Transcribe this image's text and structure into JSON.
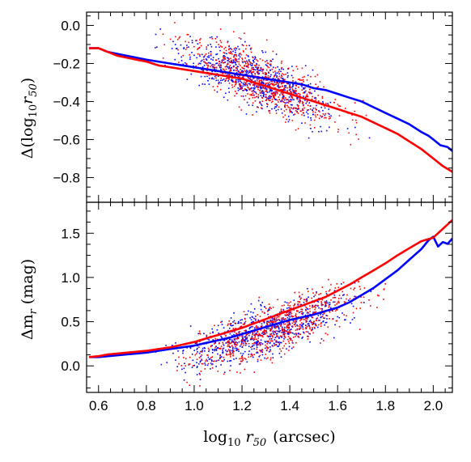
{
  "chart_data": [
    {
      "type": "scatter",
      "panel": "top",
      "ylabel": "Δ(log10r50)",
      "ylabel_parts": {
        "prefix": "Δ(log",
        "sub": "10",
        "var": "r",
        "var_sub": "50",
        "suffix": ")"
      },
      "xlim": [
        0.55,
        2.08
      ],
      "ylim": [
        -0.93,
        0.07
      ],
      "xticks": [
        0.6,
        0.8,
        1.0,
        1.2,
        1.4,
        1.6,
        1.8,
        2.0
      ],
      "yticks": [
        -0.8,
        -0.6,
        -0.4,
        -0.2,
        0.0
      ],
      "ytick_labels": [
        "−0.8",
        "−0.6",
        "−0.4",
        "−0.2",
        "0.0"
      ],
      "show_x_labels": false,
      "grid": false,
      "series": [
        {
          "color": "#0000ff",
          "line": {
            "x": [
              0.56,
              0.6,
              0.64,
              0.68,
              0.72,
              0.76,
              0.8,
              0.85,
              0.9,
              0.95,
              1.0,
              1.05,
              1.1,
              1.15,
              1.2,
              1.25,
              1.3,
              1.35,
              1.4,
              1.45,
              1.5,
              1.55,
              1.6,
              1.65,
              1.7,
              1.75,
              1.8,
              1.85,
              1.9,
              1.95,
              1.98,
              2.0,
              2.03,
              2.06,
              2.08
            ],
            "y": [
              -0.12,
              -0.12,
              -0.14,
              -0.15,
              -0.16,
              -0.17,
              -0.18,
              -0.19,
              -0.2,
              -0.21,
              -0.22,
              -0.23,
              -0.24,
              -0.25,
              -0.26,
              -0.27,
              -0.28,
              -0.29,
              -0.3,
              -0.31,
              -0.33,
              -0.34,
              -0.36,
              -0.38,
              -0.4,
              -0.43,
              -0.46,
              -0.49,
              -0.52,
              -0.56,
              -0.58,
              -0.6,
              -0.63,
              -0.64,
              -0.66
            ]
          },
          "point_cloud": {
            "x_center": 1.25,
            "x_spread": 0.28,
            "y_center": -0.28,
            "y_spread": 0.12,
            "trend_slope": -0.45
          }
        },
        {
          "color": "#ff0000",
          "line": {
            "x": [
              0.56,
              0.6,
              0.64,
              0.68,
              0.72,
              0.76,
              0.8,
              0.85,
              0.9,
              0.95,
              1.0,
              1.05,
              1.1,
              1.15,
              1.2,
              1.25,
              1.3,
              1.35,
              1.4,
              1.45,
              1.5,
              1.55,
              1.6,
              1.65,
              1.7,
              1.75,
              1.8,
              1.85,
              1.9,
              1.95,
              2.0,
              2.04,
              2.08
            ],
            "y": [
              -0.12,
              -0.12,
              -0.14,
              -0.16,
              -0.17,
              -0.18,
              -0.19,
              -0.21,
              -0.22,
              -0.23,
              -0.24,
              -0.25,
              -0.26,
              -0.27,
              -0.28,
              -0.3,
              -0.32,
              -0.34,
              -0.36,
              -0.38,
              -0.4,
              -0.42,
              -0.44,
              -0.46,
              -0.48,
              -0.51,
              -0.54,
              -0.57,
              -0.61,
              -0.65,
              -0.7,
              -0.74,
              -0.77
            ]
          },
          "point_cloud": {
            "x_center": 1.3,
            "x_spread": 0.3,
            "y_center": -0.3,
            "y_spread": 0.13,
            "trend_slope": -0.5
          }
        }
      ]
    },
    {
      "type": "scatter",
      "panel": "bottom",
      "xlabel": "log10 r50 (arcsec)",
      "xlabel_parts": {
        "prefix": "log",
        "sub": "10",
        "var": "r",
        "var_sub": "50",
        "suffix": "(arcsec)"
      },
      "ylabel": "Δmr (mag)",
      "ylabel_parts": {
        "prefix": "Δm",
        "sub": "r",
        "suffix": "(mag)"
      },
      "xlim": [
        0.55,
        2.08
      ],
      "ylim": [
        -0.3,
        1.85
      ],
      "xticks": [
        0.6,
        0.8,
        1.0,
        1.2,
        1.4,
        1.6,
        1.8,
        2.0
      ],
      "xtick_labels": [
        "0.6",
        "0.8",
        "1.0",
        "1.2",
        "1.4",
        "1.6",
        "1.8",
        "2.0"
      ],
      "yticks": [
        0.0,
        0.5,
        1.0,
        1.5
      ],
      "ytick_labels": [
        "0.0",
        "0.5",
        "1.0",
        "1.5"
      ],
      "grid": false,
      "series": [
        {
          "color": "#0000ff",
          "line": {
            "x": [
              0.56,
              0.6,
              0.64,
              0.68,
              0.72,
              0.76,
              0.8,
              0.85,
              0.9,
              0.95,
              1.0,
              1.05,
              1.1,
              1.15,
              1.2,
              1.25,
              1.3,
              1.35,
              1.4,
              1.45,
              1.5,
              1.55,
              1.6,
              1.65,
              1.7,
              1.75,
              1.8,
              1.85,
              1.9,
              1.95,
              1.98,
              2.0,
              2.02,
              2.04,
              2.06,
              2.08
            ],
            "y": [
              0.1,
              0.1,
              0.11,
              0.12,
              0.13,
              0.14,
              0.15,
              0.17,
              0.19,
              0.21,
              0.23,
              0.26,
              0.29,
              0.32,
              0.36,
              0.4,
              0.44,
              0.48,
              0.52,
              0.55,
              0.58,
              0.62,
              0.66,
              0.72,
              0.8,
              0.88,
              0.98,
              1.08,
              1.2,
              1.32,
              1.42,
              1.46,
              1.35,
              1.4,
              1.38,
              1.44
            ]
          },
          "point_cloud": {
            "x_center": 1.3,
            "x_spread": 0.3,
            "y_center": 0.4,
            "y_spread": 0.25,
            "trend_slope": 0.9
          }
        },
        {
          "color": "#ff0000",
          "line": {
            "x": [
              0.56,
              0.6,
              0.64,
              0.68,
              0.72,
              0.76,
              0.8,
              0.85,
              0.9,
              0.95,
              1.0,
              1.05,
              1.1,
              1.15,
              1.2,
              1.25,
              1.3,
              1.35,
              1.4,
              1.45,
              1.5,
              1.55,
              1.6,
              1.65,
              1.7,
              1.75,
              1.8,
              1.85,
              1.9,
              1.95,
              2.0,
              2.04,
              2.08
            ],
            "y": [
              0.1,
              0.11,
              0.13,
              0.14,
              0.15,
              0.16,
              0.17,
              0.19,
              0.21,
              0.24,
              0.27,
              0.31,
              0.35,
              0.39,
              0.43,
              0.48,
              0.53,
              0.58,
              0.63,
              0.68,
              0.73,
              0.78,
              0.85,
              0.92,
              1.0,
              1.08,
              1.16,
              1.25,
              1.33,
              1.41,
              1.45,
              1.55,
              1.65
            ]
          },
          "point_cloud": {
            "x_center": 1.35,
            "x_spread": 0.32,
            "y_center": 0.45,
            "y_spread": 0.28,
            "trend_slope": 1.0
          }
        }
      ]
    }
  ]
}
